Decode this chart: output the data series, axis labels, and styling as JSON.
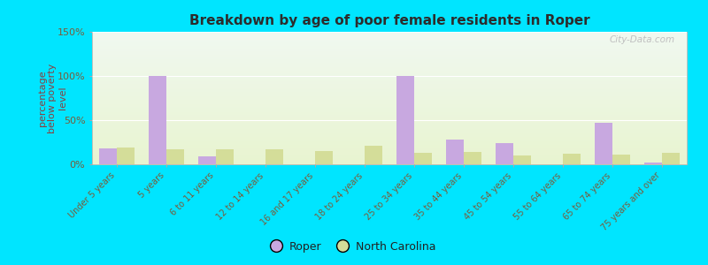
{
  "title": "Breakdown by age of poor female residents in Roper",
  "ylabel": "percentage\nbelow poverty\nlevel",
  "categories": [
    "Under 5 years",
    "5 years",
    "6 to 11 years",
    "12 to 14 years",
    "16 and 17 years",
    "18 to 24 years",
    "25 to 34 years",
    "35 to 44 years",
    "45 to 54 years",
    "55 to 64 years",
    "65 to 74 years",
    "75 years and over"
  ],
  "roper_values": [
    18,
    100,
    9,
    0,
    0,
    0,
    100,
    28,
    24,
    0,
    47,
    2
  ],
  "nc_values": [
    19,
    17,
    17,
    17,
    15,
    21,
    13,
    14,
    10,
    12,
    11,
    13
  ],
  "roper_color": "#c8a8e0",
  "nc_color": "#d4dd99",
  "ylim": [
    0,
    150
  ],
  "yticks": [
    0,
    50,
    100,
    150
  ],
  "ytick_labels": [
    "0%",
    "50%",
    "100%",
    "150%"
  ],
  "background_outer": "#00e5ff",
  "background_inner_top": "#f0f8f0",
  "background_inner_bottom": "#e8f4d0",
  "title_color": "#2c2c2c",
  "axis_label_color": "#8b4040",
  "tick_label_color": "#7a5c3a",
  "watermark": "City-Data.com",
  "bar_width": 0.35,
  "legend_roper": "Roper",
  "legend_nc": "North Carolina",
  "legend_text_color": "#222222"
}
